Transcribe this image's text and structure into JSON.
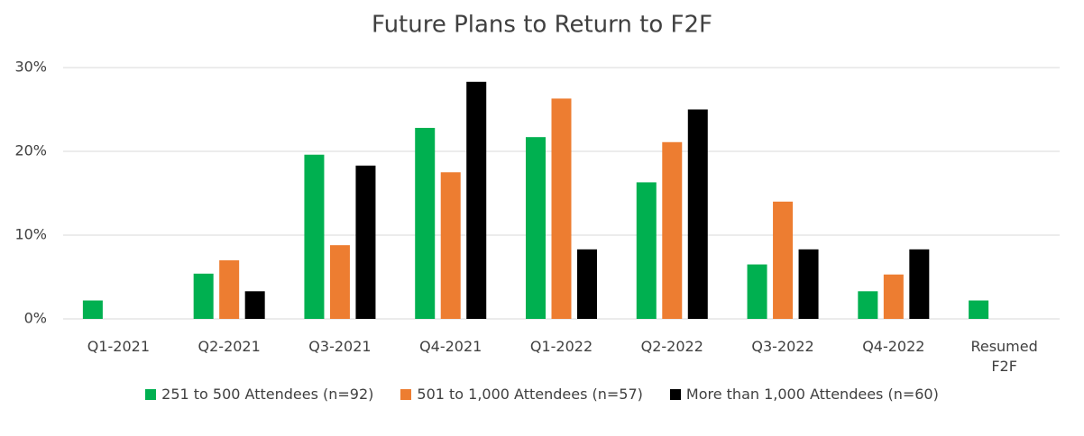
{
  "chart_data": {
    "type": "bar",
    "title": "Future Plans to Return to F2F",
    "categories": [
      "Q1-2021",
      "Q2-2021",
      "Q3-2021",
      "Q4-2021",
      "Q1-2022",
      "Q2-2022",
      "Q3-2022",
      "Q4-2022",
      "Resumed F2F"
    ],
    "series": [
      {
        "name": "251 to 500 Attendees (n=92)",
        "color": "#00b050",
        "values": [
          2.2,
          5.4,
          19.6,
          22.8,
          21.7,
          16.3,
          6.5,
          3.3,
          2.2
        ]
      },
      {
        "name": "501 to 1,000 Attendees (n=57)",
        "color": "#ed7d31",
        "values": [
          0,
          7.0,
          8.8,
          17.5,
          26.3,
          21.1,
          14.0,
          5.3,
          0
        ]
      },
      {
        "name": "More than 1,000 Attendees (n=60)",
        "color": "#000000",
        "values": [
          0,
          3.3,
          18.3,
          28.3,
          8.3,
          25.0,
          8.3,
          8.3,
          0
        ]
      }
    ],
    "ylim": [
      0,
      30
    ],
    "yticks": [
      {
        "value": 0,
        "label": "0%"
      },
      {
        "value": 10,
        "label": "10%"
      },
      {
        "value": 20,
        "label": "20%"
      },
      {
        "value": 30,
        "label": "30%"
      }
    ],
    "grid": true,
    "legend": "bottom"
  }
}
